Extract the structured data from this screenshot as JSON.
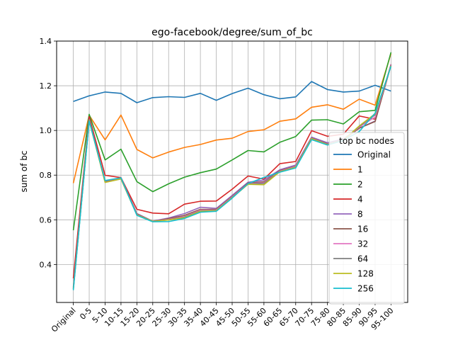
{
  "chart_data": {
    "type": "line",
    "title": "ego-facebook/degree/sum_of_bc",
    "xlabel": "",
    "ylabel": "sum of bc",
    "ylim": [
      0.23,
      1.4
    ],
    "yticks": [
      0.4,
      0.6,
      0.8,
      1.0,
      1.2,
      1.4
    ],
    "ytick_labels": [
      "0.4",
      "0.6",
      "0.8",
      "1.0",
      "1.2",
      "1.4"
    ],
    "grid": true,
    "legend_title": "top bc nodes",
    "legend_position": "center-right",
    "categories": [
      "Original",
      "0-5",
      "5-10",
      "10-15",
      "15-20",
      "20-25",
      "25-30",
      "30-35",
      "35-40",
      "40-45",
      "45-50",
      "50-55",
      "55-60",
      "60-65",
      "65-70",
      "70-75",
      "75-80",
      "80-85",
      "85-90",
      "90-95",
      "95-100"
    ],
    "series": [
      {
        "name": "Original",
        "color": "#1f77b4",
        "values": [
          1.13,
          1.155,
          1.172,
          1.166,
          1.124,
          1.147,
          1.151,
          1.148,
          1.166,
          1.135,
          1.165,
          1.189,
          1.16,
          1.142,
          1.15,
          1.219,
          1.183,
          1.172,
          1.176,
          1.202,
          1.176
        ]
      },
      {
        "name": "1",
        "color": "#ff7f0e",
        "values": [
          0.764,
          1.068,
          0.958,
          1.069,
          0.915,
          0.877,
          0.903,
          0.924,
          0.937,
          0.957,
          0.965,
          0.995,
          1.003,
          1.041,
          1.052,
          1.104,
          1.115,
          1.095,
          1.14,
          1.113,
          1.344
        ]
      },
      {
        "name": "2",
        "color": "#2ca02c",
        "values": [
          0.553,
          1.072,
          0.868,
          0.916,
          0.771,
          0.726,
          0.761,
          0.791,
          0.811,
          0.827,
          0.868,
          0.91,
          0.904,
          0.947,
          0.973,
          1.046,
          1.048,
          1.029,
          1.084,
          1.09,
          1.35
        ]
      },
      {
        "name": "4",
        "color": "#d62728",
        "values": [
          0.338,
          1.062,
          0.799,
          0.789,
          0.647,
          0.63,
          0.627,
          0.67,
          0.683,
          0.684,
          0.737,
          0.796,
          0.782,
          0.851,
          0.861,
          0.999,
          0.974,
          0.983,
          1.065,
          1.05,
          1.296
        ]
      },
      {
        "name": "8",
        "color": "#9467bd",
        "values": [
          0.3,
          1.05,
          0.772,
          0.788,
          0.628,
          0.594,
          0.608,
          0.628,
          0.656,
          0.651,
          0.709,
          0.768,
          0.778,
          0.824,
          0.845,
          0.97,
          0.945,
          0.962,
          1.01,
          1.042,
          1.295
        ]
      },
      {
        "name": "16",
        "color": "#8c564b",
        "values": [
          0.295,
          1.048,
          0.77,
          0.786,
          0.626,
          0.593,
          0.605,
          0.62,
          0.647,
          0.647,
          0.704,
          0.765,
          0.77,
          0.82,
          0.84,
          0.966,
          0.94,
          0.958,
          1.01,
          1.04,
          1.292
        ]
      },
      {
        "name": "32",
        "color": "#e377c2",
        "values": [
          0.292,
          1.047,
          0.769,
          0.784,
          0.624,
          0.593,
          0.602,
          0.615,
          0.643,
          0.644,
          0.702,
          0.762,
          0.766,
          0.818,
          0.838,
          0.965,
          0.938,
          0.957,
          1.015,
          1.06,
          1.291
        ]
      },
      {
        "name": "64",
        "color": "#7f7f7f",
        "values": [
          0.29,
          1.046,
          0.768,
          0.783,
          0.623,
          0.593,
          0.6,
          0.612,
          0.64,
          0.642,
          0.7,
          0.76,
          0.763,
          0.816,
          0.836,
          0.964,
          0.937,
          0.957,
          1.018,
          1.07,
          1.29
        ]
      },
      {
        "name": "128",
        "color": "#bcbd22",
        "values": [
          0.289,
          1.044,
          0.767,
          0.783,
          0.622,
          0.593,
          0.599,
          0.61,
          0.638,
          0.641,
          0.699,
          0.759,
          0.757,
          0.815,
          0.835,
          0.963,
          0.936,
          0.956,
          1.02,
          1.075,
          1.289
        ]
      },
      {
        "name": "256",
        "color": "#17becf",
        "values": [
          0.285,
          1.042,
          0.776,
          0.788,
          0.62,
          0.591,
          0.592,
          0.606,
          0.634,
          0.638,
          0.697,
          0.762,
          0.79,
          0.813,
          0.832,
          0.959,
          0.935,
          0.955,
          0.995,
          1.078,
          1.287
        ]
      }
    ]
  }
}
